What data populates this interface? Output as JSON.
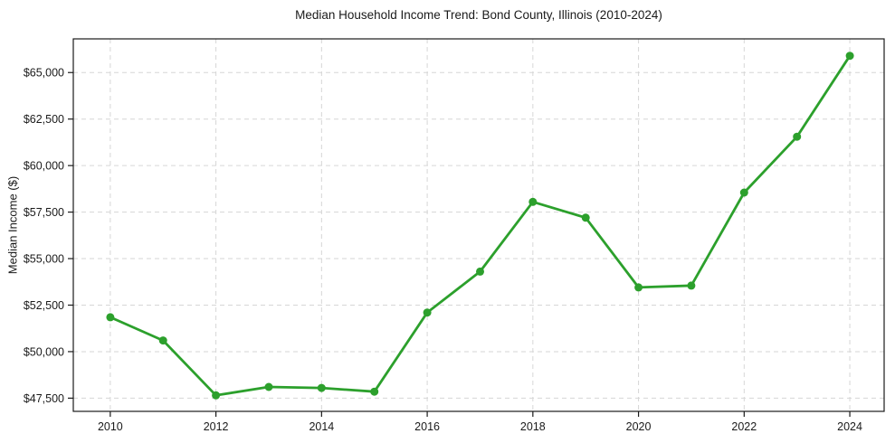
{
  "page": {
    "background_color": "#ffffff",
    "text_color": "#1a1a1a"
  },
  "chart_data": {
    "type": "line",
    "title": "Median Household Income Trend: Bond County, Illinois (2010-2024)",
    "xlabel": "",
    "ylabel": "Median Income ($)",
    "x": [
      2010,
      2011,
      2012,
      2013,
      2014,
      2015,
      2016,
      2017,
      2018,
      2019,
      2020,
      2021,
      2022,
      2023,
      2024
    ],
    "series": [
      {
        "name": "Median Household Income",
        "values": [
          51850,
          50600,
          47650,
          48100,
          48050,
          47850,
          52100,
          54300,
          58050,
          57200,
          53450,
          53550,
          58550,
          61550,
          65900
        ]
      }
    ],
    "xlim": [
      2009.3,
      2024.65
    ],
    "ylim": [
      46790,
      66810
    ],
    "x_ticks": {
      "values": [
        2010,
        2012,
        2014,
        2016,
        2018,
        2020,
        2022,
        2024
      ],
      "labels": [
        "2010",
        "2012",
        "2014",
        "2016",
        "2018",
        "2020",
        "2022",
        "2024"
      ]
    },
    "y_ticks": {
      "values": [
        47500,
        50000,
        52500,
        55000,
        57500,
        60000,
        62500,
        65000
      ],
      "labels": [
        "$47,500",
        "$50,000",
        "$52,500",
        "$55,000",
        "$57,500",
        "$60,000",
        "$62,500",
        "$65,000"
      ]
    },
    "grid": true,
    "grid_style": "dashed",
    "grid_color": "#d6d6d6",
    "legend": "none",
    "line_color": "#2ca02c",
    "marker": "circle",
    "marker_radius": 4.5,
    "line_width": 2.8,
    "axis_color": "#1a1a1a",
    "plot_background": "#ffffff"
  }
}
